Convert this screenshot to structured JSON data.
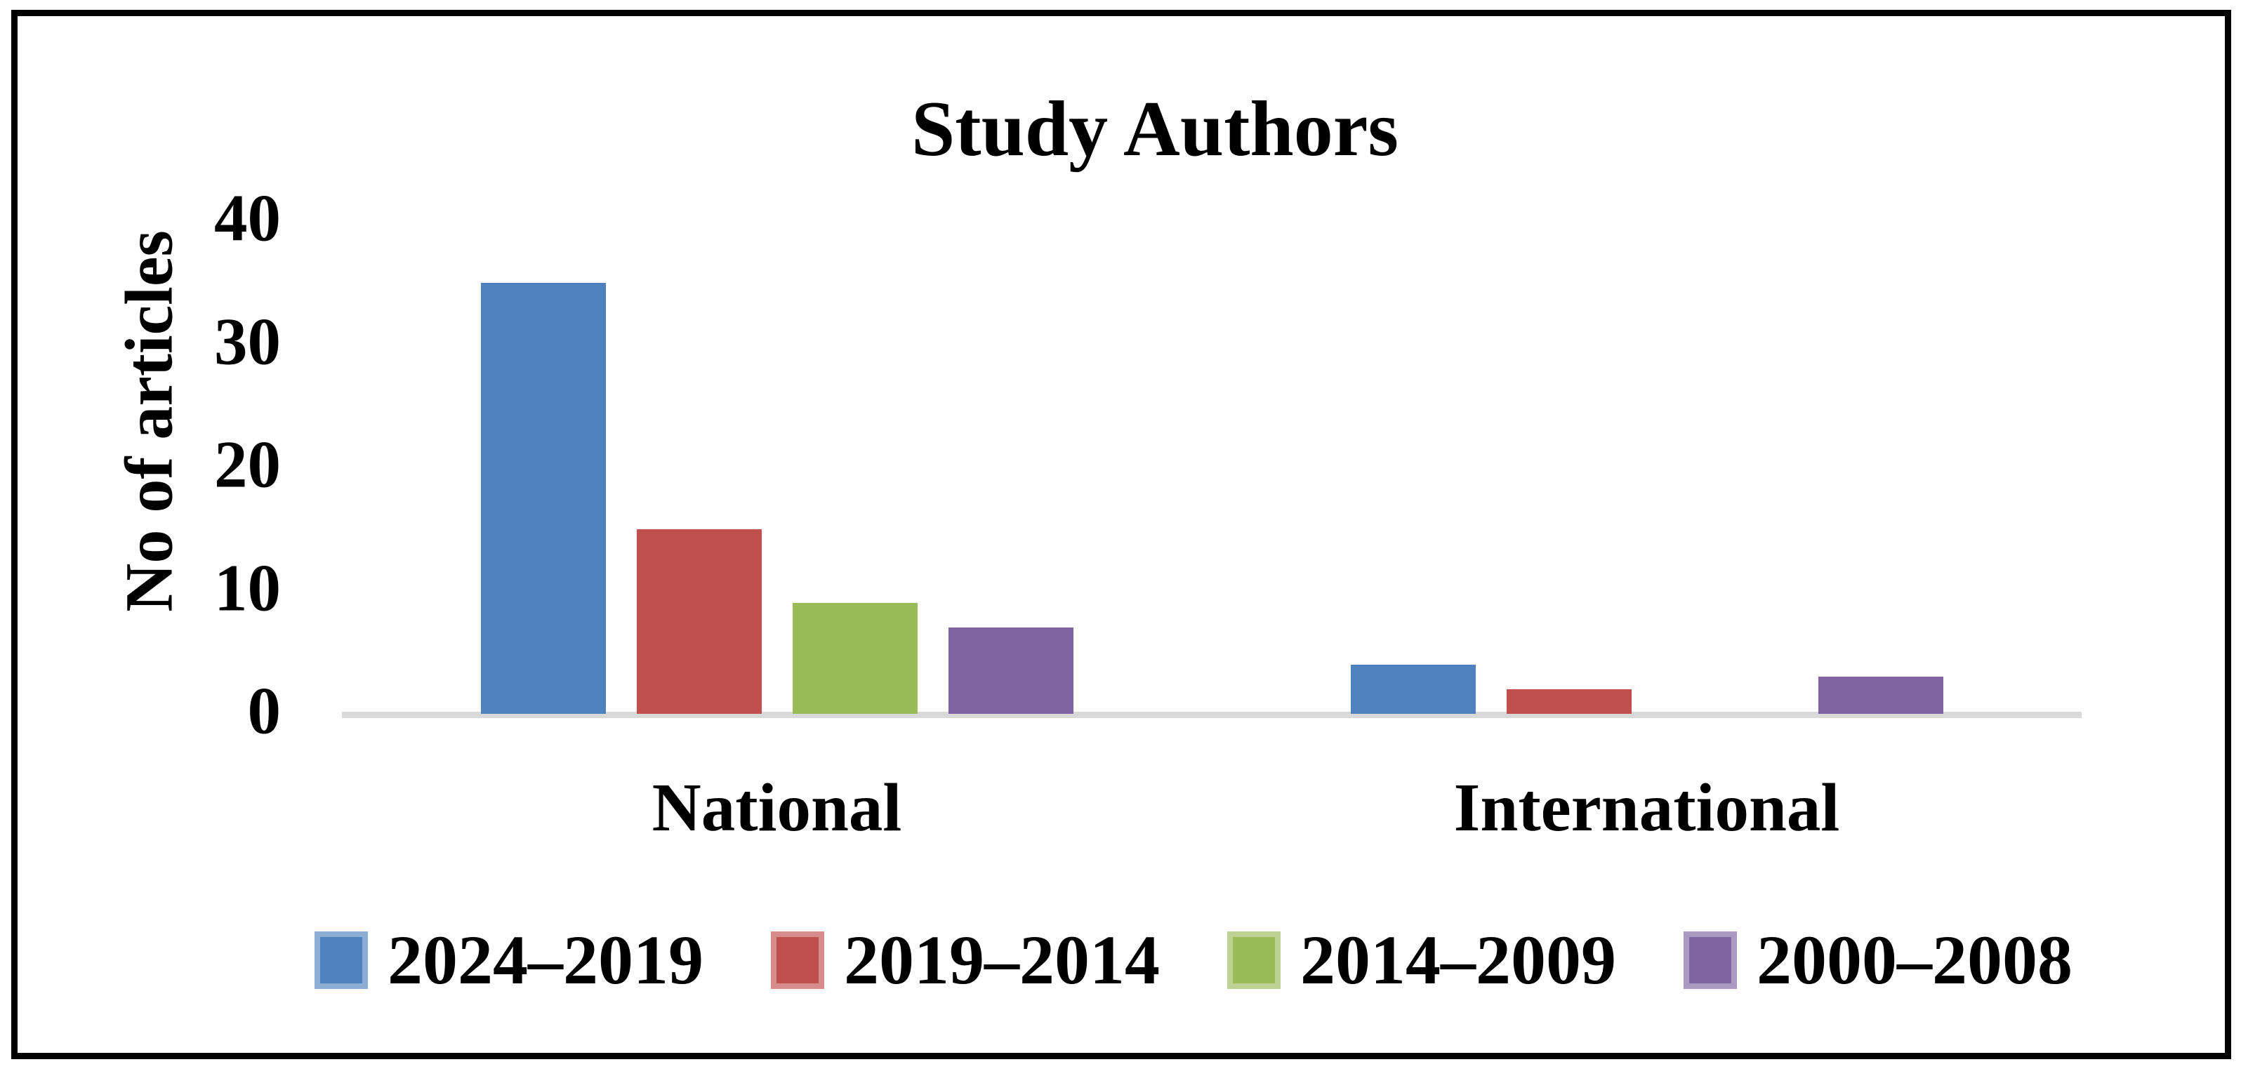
{
  "chart_data": {
    "type": "bar",
    "title": "Study Authors",
    "ylabel": "No of articles",
    "xlabel": "",
    "categories": [
      "National",
      "International"
    ],
    "series": [
      {
        "name": "2024–2019",
        "color": "#4F81BD",
        "values": [
          35,
          4
        ]
      },
      {
        "name": "2019–2014",
        "color": "#C0504D",
        "values": [
          15,
          2
        ]
      },
      {
        "name": "2014–2009",
        "color": "#9BBB59",
        "values": [
          9,
          0
        ]
      },
      {
        "name": "2000–2008",
        "color": "#8064A2",
        "values": [
          7,
          3
        ]
      }
    ],
    "ylim": [
      0,
      40
    ],
    "yticks": [
      0,
      10,
      20,
      30,
      40
    ],
    "grid": false,
    "legend_position": "bottom",
    "axis_line_color": "#D9D9D9",
    "text_color": "#000000",
    "frame_color": "#000000"
  }
}
